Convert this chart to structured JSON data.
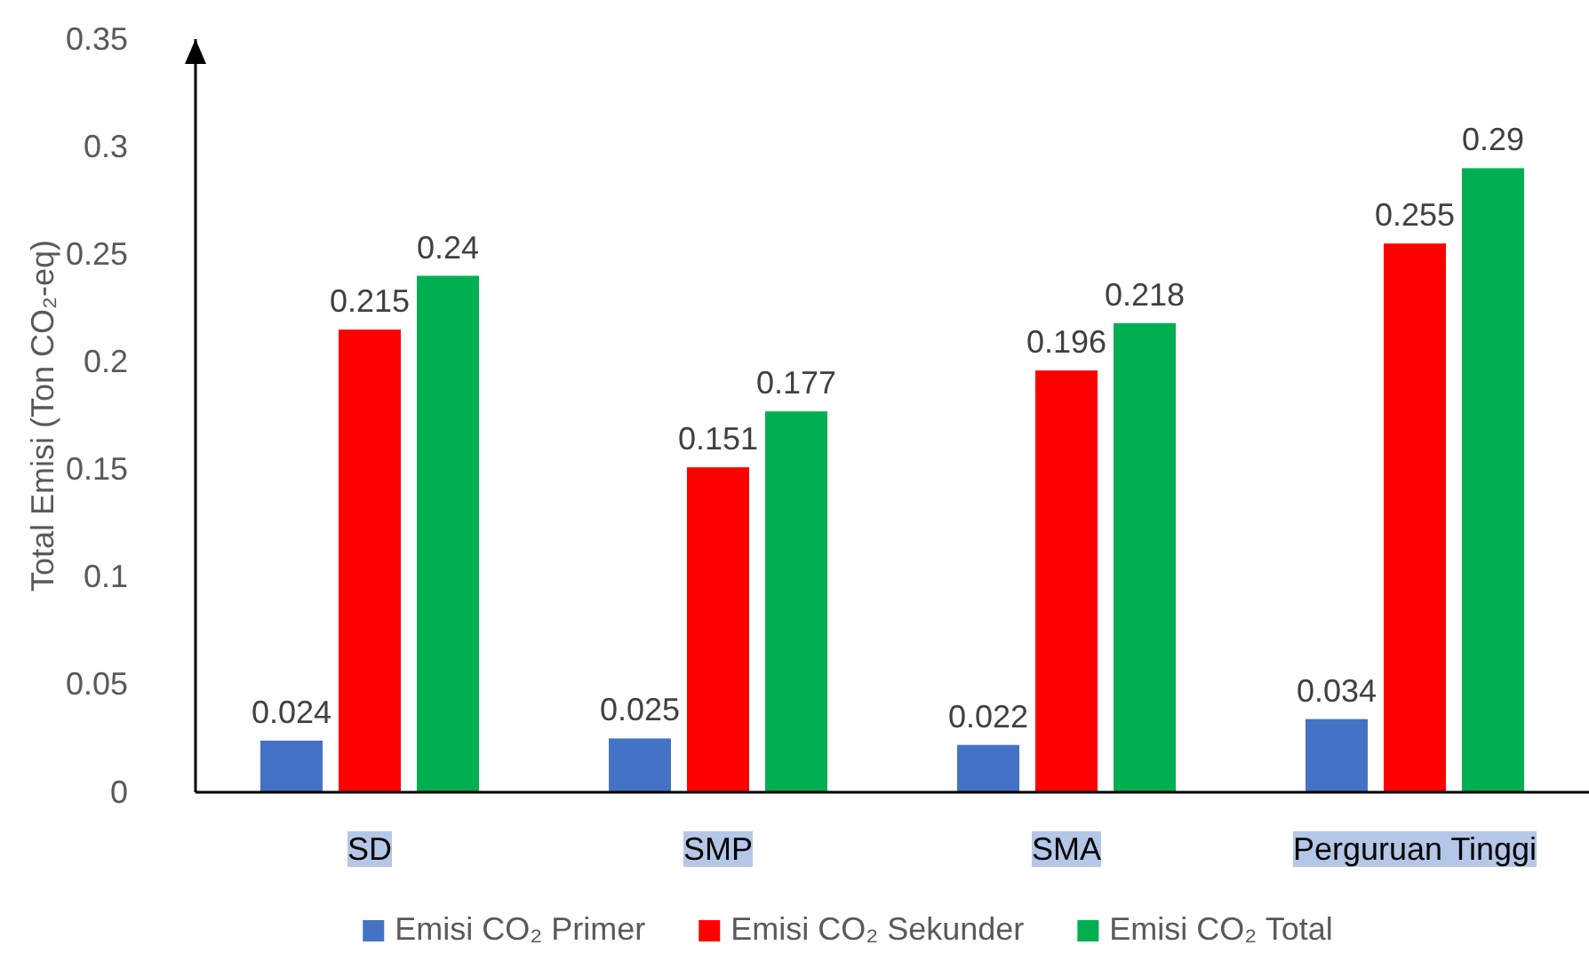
{
  "chart_data": {
    "type": "bar",
    "ylabel": "Total Emisi (Ton CO₂-eq)",
    "categories": [
      "SD",
      "SMP",
      "SMA",
      "Perguruan Tinggi"
    ],
    "series": [
      {
        "name": "Emisi CO₂ Primer",
        "color": "#4472c4",
        "values": [
          0.024,
          0.025,
          0.022,
          0.034
        ]
      },
      {
        "name": "Emisi CO₂ Sekunder",
        "color": "#ff0000",
        "values": [
          0.215,
          0.151,
          0.196,
          0.255
        ]
      },
      {
        "name": "Emisi CO₂ Total",
        "color": "#00b050",
        "values": [
          0.24,
          0.177,
          0.218,
          0.29
        ]
      }
    ],
    "ylim": [
      0,
      0.35
    ],
    "yticks": [
      0,
      0.05,
      0.1,
      0.15,
      0.2,
      0.25,
      0.3,
      0.35
    ],
    "data_labels": true,
    "legend": "bottom",
    "grid": false
  }
}
